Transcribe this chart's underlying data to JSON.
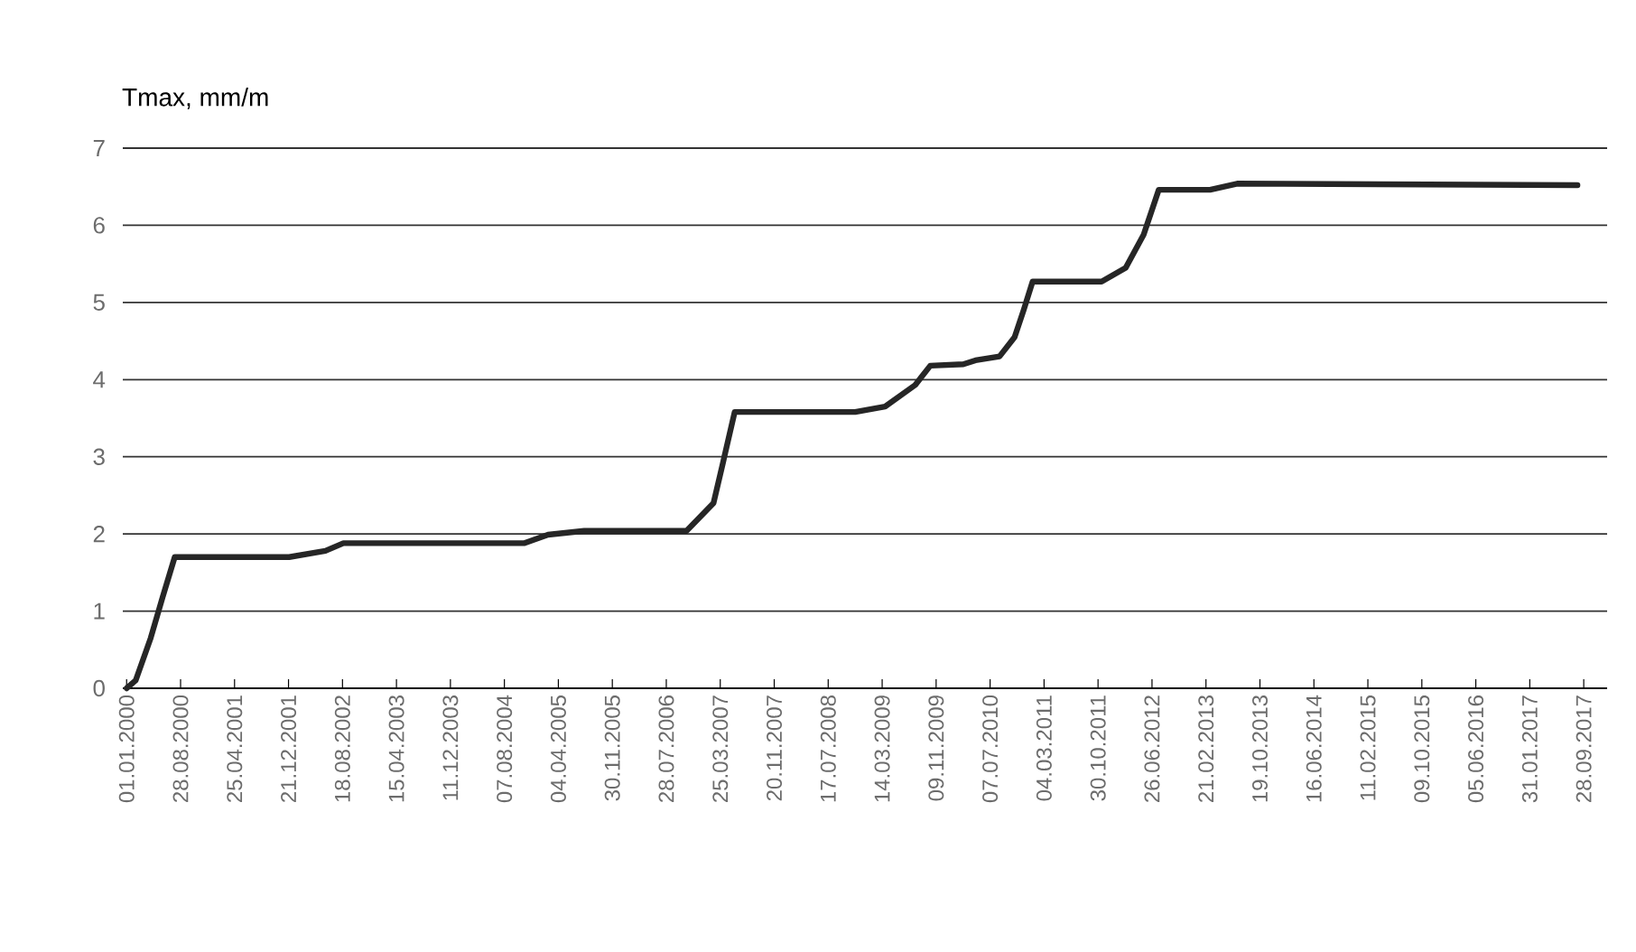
{
  "chart_data": {
    "type": "line",
    "ylabel": "Tmax, mm/m",
    "x": [
      "2000-01-01",
      "2000-02-10",
      "2000-04-17",
      "2000-06-10",
      "2000-08-02",
      "2001-12-24",
      "2002-06-03",
      "2002-08-22",
      "2004-11-02",
      "2005-02-17",
      "2005-07-28",
      "2006-10-26",
      "2007-02-23",
      "2007-04-05",
      "2007-05-28",
      "2008-11-14",
      "2009-03-27",
      "2009-08-08",
      "2009-10-14",
      "2010-03-10",
      "2010-05-03",
      "2010-08-18",
      "2010-10-24",
      "2010-12-03",
      "2011-01-12",
      "2011-11-15",
      "2012-03-01",
      "2012-05-20",
      "2012-07-26",
      "2013-03-11",
      "2013-07-10",
      "2017-08-31"
    ],
    "values": [
      0,
      0.1,
      0.65,
      1.19,
      1.7,
      1.7,
      1.78,
      1.88,
      1.88,
      1.99,
      2.04,
      2.04,
      2.4,
      2.91,
      3.58,
      3.58,
      3.65,
      3.93,
      4.18,
      4.2,
      4.25,
      4.3,
      4.55,
      4.9,
      5.27,
      5.27,
      5.45,
      5.88,
      6.46,
      6.46,
      6.54,
      6.52
    ],
    "color": "#262626",
    "line_style": "solid",
    "xlim": [
      "1999-12-15",
      "2018-01-10"
    ],
    "ylim": [
      0,
      7
    ],
    "yticks": [
      0,
      1,
      2,
      3,
      4,
      5,
      6,
      7
    ],
    "grid": "y",
    "xticks": [
      {
        "value": "2000-01-01",
        "label": "01.01.2000"
      },
      {
        "value": "2000-08-28",
        "label": "28.08.2000"
      },
      {
        "value": "2001-04-25",
        "label": "25.04.2001"
      },
      {
        "value": "2001-12-21",
        "label": "21.12.2001"
      },
      {
        "value": "2002-08-18",
        "label": "18.08.2002"
      },
      {
        "value": "2003-04-15",
        "label": "15.04.2003"
      },
      {
        "value": "2003-12-11",
        "label": "11.12.2003"
      },
      {
        "value": "2004-08-07",
        "label": "07.08.2004"
      },
      {
        "value": "2005-04-04",
        "label": "04.04.2005"
      },
      {
        "value": "2005-11-30",
        "label": "30.11.2005"
      },
      {
        "value": "2006-07-28",
        "label": "28.07.2006"
      },
      {
        "value": "2007-03-25",
        "label": "25.03.2007"
      },
      {
        "value": "2007-11-20",
        "label": "20.11.2007"
      },
      {
        "value": "2008-07-17",
        "label": "17.07.2008"
      },
      {
        "value": "2009-03-14",
        "label": "14.03.2009"
      },
      {
        "value": "2009-11-09",
        "label": "09.11.2009"
      },
      {
        "value": "2010-07-07",
        "label": "07.07.2010"
      },
      {
        "value": "2011-03-04",
        "label": "04.03.2011"
      },
      {
        "value": "2011-10-30",
        "label": "30.10.2011"
      },
      {
        "value": "2012-06-26",
        "label": "26.06.2012"
      },
      {
        "value": "2013-02-21",
        "label": "21.02.2013"
      },
      {
        "value": "2013-10-19",
        "label": "19.10.2013"
      },
      {
        "value": "2014-06-16",
        "label": "16.06.2014"
      },
      {
        "value": "2015-02-11",
        "label": "11.02.2015"
      },
      {
        "value": "2015-10-09",
        "label": "09.10.2015"
      },
      {
        "value": "2016-06-05",
        "label": "05.06.2016"
      },
      {
        "value": "2017-01-31",
        "label": "31.01.2017"
      },
      {
        "value": "2017-09-28",
        "label": "28.09.2017"
      }
    ]
  }
}
